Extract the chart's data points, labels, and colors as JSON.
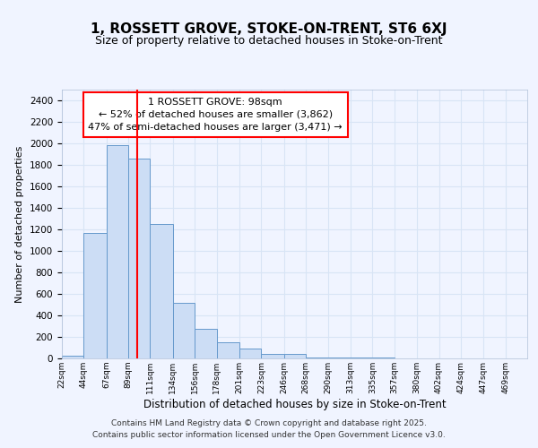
{
  "title1": "1, ROSSETT GROVE, STOKE-ON-TRENT, ST6 6XJ",
  "title2": "Size of property relative to detached houses in Stoke-on-Trent",
  "xlabel": "Distribution of detached houses by size in Stoke-on-Trent",
  "ylabel": "Number of detached properties",
  "bin_edges": [
    22,
    44,
    67,
    89,
    111,
    134,
    156,
    178,
    201,
    223,
    246,
    268,
    290,
    313,
    335,
    357,
    380,
    402,
    424,
    447,
    469
  ],
  "bar_heights": [
    25,
    1170,
    1980,
    1860,
    1250,
    520,
    275,
    150,
    90,
    45,
    40,
    10,
    10,
    5,
    5,
    3,
    2,
    2,
    1,
    1
  ],
  "bar_color": "#ccddf5",
  "bar_edge_color": "#6699cc",
  "red_line_x": 98,
  "ylim": [
    0,
    2500
  ],
  "yticks": [
    0,
    200,
    400,
    600,
    800,
    1000,
    1200,
    1400,
    1600,
    1800,
    2000,
    2200,
    2400
  ],
  "annotation_title": "1 ROSSETT GROVE: 98sqm",
  "annotation_line1": "← 52% of detached houses are smaller (3,862)",
  "annotation_line2": "47% of semi-detached houses are larger (3,471) →",
  "footer1": "Contains HM Land Registry data © Crown copyright and database right 2025.",
  "footer2": "Contains public sector information licensed under the Open Government Licence v3.0.",
  "bg_color": "#f0f4ff",
  "grid_color": "#d8e4f5",
  "title1_fontsize": 11,
  "title2_fontsize": 9
}
